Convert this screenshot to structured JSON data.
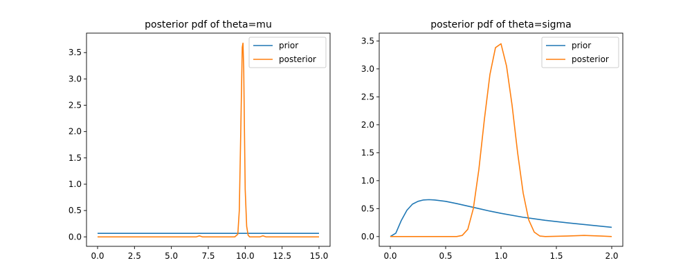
{
  "chart_data": [
    {
      "type": "line",
      "title": "posterior pdf of theta=mu",
      "xlim": [
        -0.75,
        15.75
      ],
      "ylim": [
        -0.18,
        3.87
      ],
      "xticks": [
        "0.0",
        "2.5",
        "5.0",
        "7.5",
        "10.0",
        "12.5",
        "15.0"
      ],
      "xtick_values": [
        0,
        2.5,
        5,
        7.5,
        10,
        12.5,
        15
      ],
      "yticks": [
        "0.0",
        "0.5",
        "1.0",
        "1.5",
        "2.0",
        "2.5",
        "3.0",
        "3.5"
      ],
      "ytick_values": [
        0,
        0.5,
        1,
        1.5,
        2,
        2.5,
        3,
        3.5
      ],
      "legend": "upper right",
      "series": [
        {
          "name": "prior",
          "color": "#1f77b4",
          "x": [
            0,
            15
          ],
          "y": [
            0.067,
            0.067
          ]
        },
        {
          "name": "posterior",
          "color": "#ff7f0e",
          "x": [
            0,
            6.7,
            6.9,
            7.1,
            9.3,
            9.5,
            9.6,
            9.7,
            9.8,
            9.85,
            9.9,
            9.95,
            10.0,
            10.1,
            10.2,
            10.3,
            11.0,
            11.2,
            11.4,
            15
          ],
          "y": [
            0,
            0,
            0.02,
            0,
            0,
            0.05,
            0.5,
            2.0,
            3.6,
            3.68,
            3.2,
            2.0,
            0.9,
            0.2,
            0.03,
            0,
            0,
            0.02,
            0,
            0
          ]
        }
      ]
    },
    {
      "type": "line",
      "title": "posterior pdf of theta=sigma",
      "xlim": [
        -0.1,
        2.1
      ],
      "ylim": [
        -0.175,
        3.64
      ],
      "xticks": [
        "0.0",
        "0.5",
        "1.0",
        "1.5",
        "2.0"
      ],
      "xtick_values": [
        0,
        0.5,
        1,
        1.5,
        2
      ],
      "yticks": [
        "0.0",
        "0.5",
        "1.0",
        "1.5",
        "2.0",
        "2.5",
        "3.0",
        "3.5"
      ],
      "ytick_values": [
        0,
        0.5,
        1,
        1.5,
        2,
        2.5,
        3,
        3.5
      ],
      "legend": "upper right",
      "series": [
        {
          "name": "prior",
          "color": "#1f77b4",
          "x": [
            0,
            0.05,
            0.1,
            0.15,
            0.2,
            0.25,
            0.3,
            0.35,
            0.4,
            0.5,
            0.6,
            0.7,
            0.8,
            0.9,
            1.0,
            1.2,
            1.4,
            1.6,
            1.8,
            2.0
          ],
          "y": [
            0.0,
            0.06,
            0.29,
            0.47,
            0.58,
            0.63,
            0.655,
            0.66,
            0.655,
            0.63,
            0.59,
            0.545,
            0.5,
            0.455,
            0.415,
            0.345,
            0.29,
            0.245,
            0.205,
            0.165
          ]
        },
        {
          "name": "posterior",
          "color": "#ff7f0e",
          "x": [
            0,
            0.6,
            0.65,
            0.7,
            0.75,
            0.8,
            0.85,
            0.9,
            0.95,
            1.0,
            1.05,
            1.1,
            1.15,
            1.2,
            1.25,
            1.3,
            1.35,
            1.4,
            1.6,
            1.75,
            1.9,
            2.0
          ],
          "y": [
            0,
            0.0,
            0.02,
            0.13,
            0.5,
            1.2,
            2.1,
            2.9,
            3.38,
            3.45,
            3.05,
            2.35,
            1.5,
            0.78,
            0.3,
            0.08,
            0.01,
            0,
            0.01,
            0.02,
            0.01,
            0
          ]
        }
      ]
    }
  ]
}
